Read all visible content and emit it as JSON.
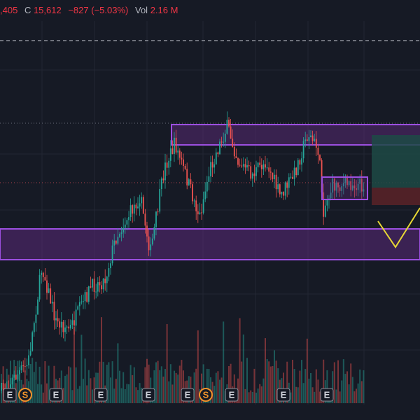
{
  "header": {
    "open_fragment": ",405",
    "close_label": "C",
    "close": "15,612",
    "change": "−827 (−5.03%)",
    "volume_label": "Vol",
    "volume": "2.16 M"
  },
  "events": [
    "E",
    "S",
    "E",
    "E",
    "E",
    "E",
    "S",
    "E",
    "E",
    "E"
  ]
}
